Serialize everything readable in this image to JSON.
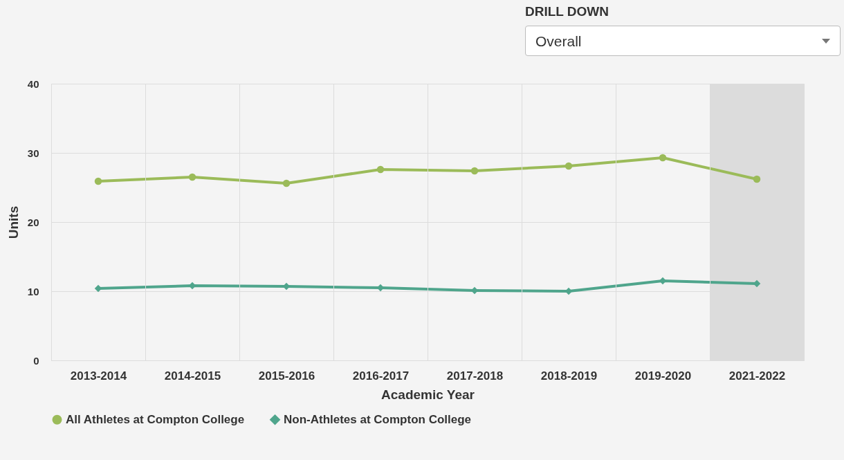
{
  "chart_data": {
    "type": "line",
    "xlabel": "Academic Year",
    "ylabel": "Units",
    "categories": [
      "2013-2014",
      "2014-2015",
      "2015-2016",
      "2016-2017",
      "2017-2018",
      "2018-2019",
      "2019-2020",
      "2021-2022"
    ],
    "series": [
      {
        "name": "All Athletes at Compton College",
        "color": "#9bbb59",
        "marker": "circle",
        "values": [
          25.9,
          26.5,
          25.6,
          27.6,
          27.4,
          28.1,
          29.3,
          26.2
        ]
      },
      {
        "name": "Non-Athletes at Compton College",
        "color": "#4fa58c",
        "marker": "diamond",
        "values": [
          10.4,
          10.8,
          10.7,
          10.5,
          10.1,
          10.0,
          11.5,
          11.1
        ]
      }
    ],
    "ylim": [
      0,
      40
    ],
    "yticks": [
      0,
      10,
      20,
      30,
      40
    ],
    "grid": true,
    "legend": "bottom",
    "bands": [
      {
        "axis": "x",
        "from": "2021-2022",
        "to": "2021-2022",
        "color": "#dcdcdc"
      }
    ],
    "annotations": [
      "DRILL DOWN",
      "Overall"
    ]
  }
}
